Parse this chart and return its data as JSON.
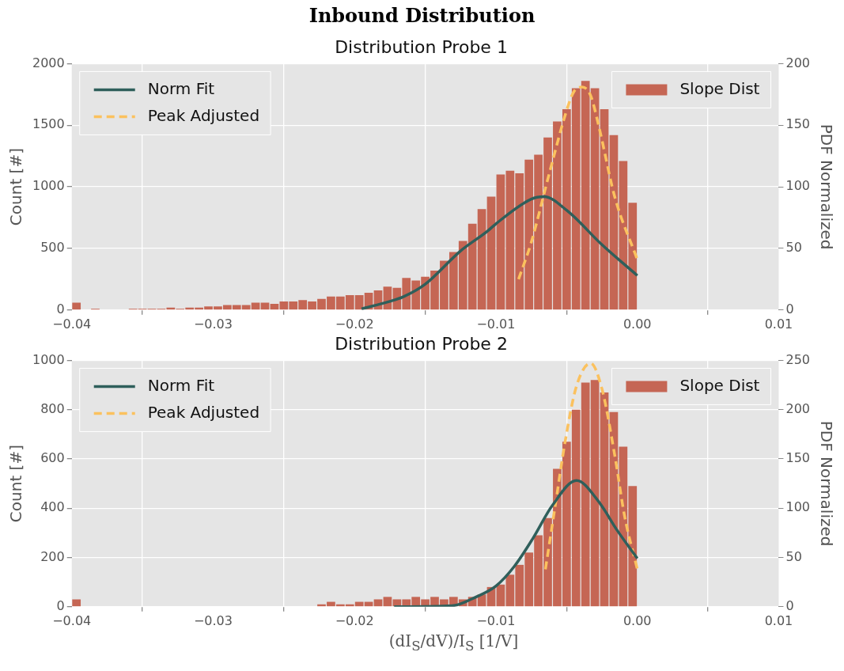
{
  "chart_data": [
    {
      "type": "histogram",
      "title": "Inbound Distribution",
      "subtitle": "Distribution Probe 1",
      "ylabel": "Count [#]",
      "y2label": "PDF Normalized",
      "bins": [
        -0.04,
        -0.039333,
        -0.038667,
        -0.038,
        -0.037333,
        -0.036667,
        -0.036,
        -0.035333,
        -0.034667,
        -0.034,
        -0.033333,
        -0.032667,
        -0.032,
        -0.031333,
        -0.030667,
        -0.03,
        -0.029333,
        -0.028667,
        -0.028,
        -0.027333,
        -0.026667,
        -0.026,
        -0.025333,
        -0.024667,
        -0.024,
        -0.023333,
        -0.022667,
        -0.022,
        -0.021333,
        -0.020667,
        -0.02,
        -0.019333,
        -0.018667,
        -0.018,
        -0.017333,
        -0.016667,
        -0.016,
        -0.015333,
        -0.014667,
        -0.014,
        -0.013333,
        -0.012667,
        -0.012,
        -0.011333,
        -0.010667,
        -0.01,
        -0.009333,
        -0.008667,
        -0.008,
        -0.007333,
        -0.006667,
        -0.006,
        -0.005333,
        -0.004667,
        -0.004,
        -0.003333,
        -0.002667,
        -0.002,
        -0.001333,
        -0.000667,
        0
      ],
      "series": [
        {
          "name": "Slope Dist",
          "type": "histogram",
          "color": "#c56654",
          "values": [
            60,
            0,
            10,
            0,
            0,
            0,
            10,
            10,
            10,
            10,
            20,
            10,
            20,
            20,
            30,
            30,
            40,
            40,
            40,
            60,
            60,
            50,
            70,
            70,
            80,
            70,
            90,
            110,
            110,
            120,
            120,
            140,
            160,
            190,
            180,
            260,
            240,
            270,
            320,
            400,
            470,
            560,
            700,
            820,
            920,
            1100,
            1130,
            1110,
            1220,
            1260,
            1400,
            1530,
            1630,
            1800,
            1860,
            1800,
            1630,
            1420,
            1210,
            870
          ]
        },
        {
          "name": "Norm Fit",
          "type": "line",
          "axis": "y2",
          "color": "#2f5f5b",
          "line_style": "solid",
          "x": [
            -0.0195,
            -0.0175,
            -0.0165,
            -0.015,
            -0.0125,
            -0.0106,
            -0.01,
            -0.0075,
            -0.0066,
            -0.005,
            -0.0025,
            0
          ],
          "values": [
            1,
            7,
            11,
            21,
            48,
            64,
            70,
            90,
            92,
            81,
            53,
            28
          ]
        },
        {
          "name": "Peak Adjusted",
          "type": "line",
          "axis": "y2",
          "color": "#fbc15e",
          "line_style": "dashed",
          "x": [
            -0.0084,
            -0.0075,
            -0.0062,
            -0.005,
            -0.0045,
            -0.0039,
            -0.0033,
            -0.0027,
            -0.0016,
            0
          ],
          "values": [
            25,
            55,
            112,
            162,
            177,
            181,
            174,
            148,
            92,
            41
          ]
        }
      ],
      "xlim": [
        -0.04,
        0.01
      ],
      "xticks": [
        {
          "value": -0.04,
          "label": "−0.04"
        },
        {
          "value": -0.03,
          "label": "−0.03"
        },
        {
          "value": -0.02,
          "label": "−0.02"
        },
        {
          "value": -0.01,
          "label": "−0.01"
        },
        {
          "value": 0,
          "label": "0.00"
        },
        {
          "value": 0.01,
          "label": "0.01"
        }
      ],
      "ylim": [
        0,
        2000
      ],
      "yticks": [
        0,
        500,
        1000,
        1500,
        2000
      ],
      "y2lim": [
        0,
        200
      ],
      "y2ticks": [
        0,
        50,
        100,
        150,
        200
      ],
      "grid": true,
      "legend": "top",
      "marker": "none"
    },
    {
      "type": "histogram",
      "title": "Distribution Probe 2",
      "xlabel": "(dI$_{S}$/dV)/I$_{S}$     [1/V]",
      "ylabel": "Count [#]",
      "y2label": "PDF Normalized",
      "bins": [
        -0.04,
        -0.039333,
        -0.038667,
        -0.038,
        -0.037333,
        -0.036667,
        -0.036,
        -0.035333,
        -0.034667,
        -0.034,
        -0.033333,
        -0.032667,
        -0.032,
        -0.031333,
        -0.030667,
        -0.03,
        -0.029333,
        -0.028667,
        -0.028,
        -0.027333,
        -0.026667,
        -0.026,
        -0.025333,
        -0.024667,
        -0.024,
        -0.023333,
        -0.022667,
        -0.022,
        -0.021333,
        -0.020667,
        -0.02,
        -0.019333,
        -0.018667,
        -0.018,
        -0.017333,
        -0.016667,
        -0.016,
        -0.015333,
        -0.014667,
        -0.014,
        -0.013333,
        -0.012667,
        -0.012,
        -0.011333,
        -0.010667,
        -0.01,
        -0.009333,
        -0.008667,
        -0.008,
        -0.007333,
        -0.006667,
        -0.006,
        -0.005333,
        -0.004667,
        -0.004,
        -0.003333,
        -0.002667,
        -0.002,
        -0.001333,
        -0.000667,
        0
      ],
      "series": [
        {
          "name": "Slope Dist",
          "type": "histogram",
          "color": "#c56654",
          "values": [
            30,
            0,
            0,
            0,
            0,
            0,
            0,
            0,
            0,
            0,
            0,
            0,
            0,
            0,
            0,
            0,
            0,
            0,
            0,
            0,
            0,
            0,
            0,
            0,
            0,
            0,
            10,
            20,
            10,
            10,
            20,
            20,
            30,
            40,
            30,
            30,
            40,
            30,
            40,
            30,
            40,
            30,
            40,
            50,
            80,
            90,
            130,
            170,
            220,
            290,
            360,
            560,
            670,
            800,
            910,
            920,
            870,
            790,
            650,
            490
          ]
        },
        {
          "name": "Norm Fit",
          "type": "line",
          "axis": "y2",
          "color": "#2f5f5b",
          "line_style": "solid",
          "x": [
            -0.0172,
            -0.0131,
            -0.0114,
            -0.01,
            -0.0087,
            -0.0074,
            -0.006,
            -0.0043,
            -0.0028,
            -0.0014,
            0
          ],
          "values": [
            0,
            1,
            10,
            21,
            41,
            69,
            103,
            128,
            108,
            77,
            49
          ]
        },
        {
          "name": "Peak Adjusted",
          "type": "line",
          "axis": "y2",
          "color": "#fbc15e",
          "line_style": "dashed",
          "x": [
            -0.0065,
            -0.0058,
            -0.0051,
            -0.0043,
            -0.0033,
            -0.0025,
            -0.0016,
            -0.0009,
            0
          ],
          "values": [
            38,
            103,
            168,
            224,
            247,
            221,
            154,
            92,
            38
          ]
        }
      ],
      "xlim": [
        -0.04,
        0.01
      ],
      "xticks": [
        {
          "value": -0.04,
          "label": "−0.04"
        },
        {
          "value": -0.03,
          "label": "−0.03"
        },
        {
          "value": -0.02,
          "label": "−0.02"
        },
        {
          "value": -0.01,
          "label": "−0.01"
        },
        {
          "value": 0,
          "label": "0.00"
        },
        {
          "value": 0.01,
          "label": "0.01"
        }
      ],
      "ylim": [
        0,
        1000
      ],
      "yticks": [
        0,
        200,
        400,
        600,
        800,
        1000
      ],
      "y2lim": [
        0,
        250
      ],
      "y2ticks": [
        0,
        50,
        100,
        150,
        200,
        250
      ],
      "grid": true,
      "legend": "top",
      "marker": "none"
    }
  ]
}
